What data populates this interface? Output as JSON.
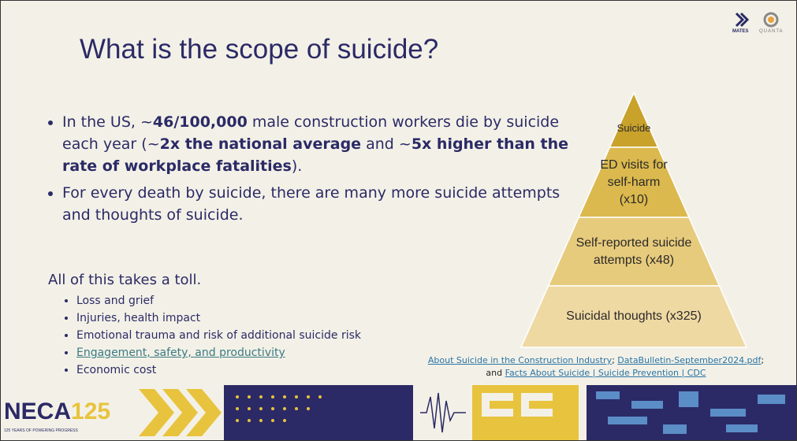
{
  "header": {
    "title": "What is the scope of suicide?"
  },
  "bullets": [
    {
      "segments": [
        {
          "text": "In the US, ~",
          "bold": false
        },
        {
          "text": "46/100,000",
          "bold": true
        },
        {
          "text": " male construction workers die by suicide each year (~",
          "bold": false
        },
        {
          "text": "2x the national average",
          "bold": true
        },
        {
          "text": " and ~",
          "bold": false
        },
        {
          "text": "5x higher than the rate of workplace fatalities",
          "bold": true
        },
        {
          "text": ").",
          "bold": false
        }
      ]
    },
    {
      "segments": [
        {
          "text": "For every death by suicide, there are many more suicide attempts and thoughts of suicide.",
          "bold": false
        }
      ]
    }
  ],
  "toll": {
    "heading": "All of this takes a toll.",
    "items": [
      {
        "text": "Loss and grief",
        "link": false
      },
      {
        "text": "Injuries, health impact",
        "link": false
      },
      {
        "text": "Emotional trauma and risk of additional suicide risk",
        "link": false
      },
      {
        "text": "Engagement, safety, and productivity",
        "link": true
      },
      {
        "text": "Economic cost",
        "link": false
      }
    ]
  },
  "pyramid": {
    "levels": [
      {
        "label": "Suicide",
        "color": "#c9a22c"
      },
      {
        "label": "ED visits for self-harm (x10)",
        "color": "#dbb94e"
      },
      {
        "label": "Self-reported suicide attempts (x48)",
        "color": "#e7cb7c"
      },
      {
        "label": "Suicidal thoughts (x325)",
        "color": "#efd9a3"
      }
    ]
  },
  "sources": [
    {
      "text": "About Suicide in the Construction Industry",
      "link": true
    },
    {
      "text": "; ",
      "link": false
    },
    {
      "text": "DataBulletin-September2024.pdf",
      "link": true
    },
    {
      "text": ";",
      "link": false
    },
    {
      "text": "and ",
      "link": false
    },
    {
      "text": "Facts About Suicide | Suicide Prevention | CDC",
      "link": true
    }
  ],
  "logos": {
    "mates": "MATES",
    "quanta": "QUANTA",
    "neca": "NECA",
    "neca_number": "125",
    "neca_tagline": "125 YEARS OF POWERING PROGRESS"
  }
}
